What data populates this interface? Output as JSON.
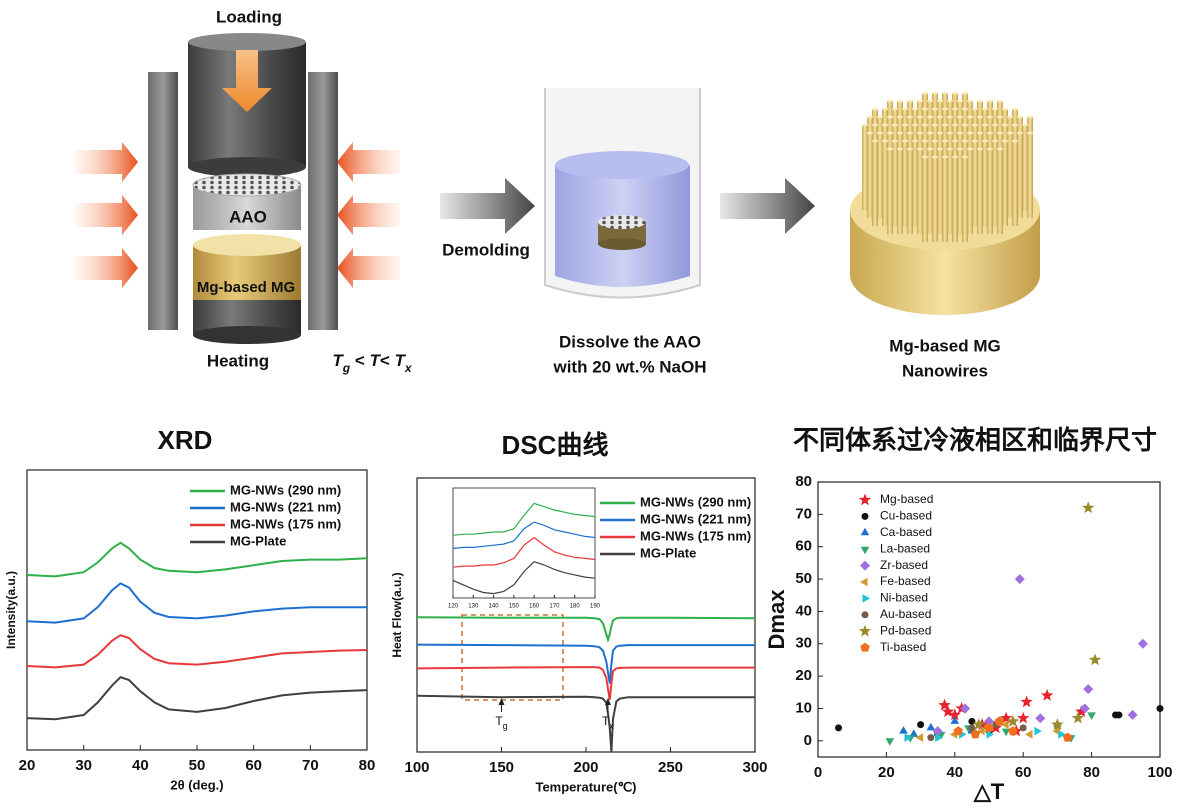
{
  "schematic": {
    "loading": "Loading",
    "aao": "AAO",
    "mg_based_mg": "Mg-based MG",
    "heating": "Heating",
    "condition": [
      "T",
      "g",
      " < ",
      "T",
      "< ",
      "T",
      "x"
    ],
    "demolding": "Demolding",
    "dissolve": [
      "Dissolve the AAO",
      "with 20 wt.% NaOH"
    ],
    "product": [
      "Mg-based MG",
      "Nanowires"
    ]
  },
  "chart_data": [
    {
      "type": "line",
      "title": "XRD",
      "xlabel": "2θ (deg.)",
      "ylabel": "Intensity(a.u.)",
      "x": [
        20,
        25,
        30,
        32.5,
        35,
        36.5,
        38,
        40,
        42.5,
        45,
        50,
        55,
        60,
        65,
        70,
        75,
        80
      ],
      "xlim": [
        20,
        80
      ],
      "xticks": [
        20,
        30,
        40,
        50,
        60,
        70,
        80
      ],
      "ylim": [
        0,
        10
      ],
      "legend": "upper right",
      "series": [
        {
          "name": "MG-NWs (290 nm)",
          "color": "#2eb04b",
          "values": [
            6.25,
            6.2,
            6.35,
            6.7,
            7.2,
            7.4,
            7.2,
            6.8,
            6.5,
            6.4,
            6.35,
            6.45,
            6.6,
            6.75,
            6.8,
            6.8,
            6.85
          ]
        },
        {
          "name": "MG-NWs (221 nm)",
          "color": "#1f6fd1",
          "values": [
            4.6,
            4.55,
            4.7,
            5.1,
            5.7,
            5.95,
            5.8,
            5.3,
            4.9,
            4.75,
            4.7,
            4.8,
            4.95,
            5.05,
            5.1,
            5.1,
            5.1
          ]
        },
        {
          "name": "MG-NWs (175 nm)",
          "color": "#e8383b",
          "values": [
            3.0,
            2.95,
            3.05,
            3.4,
            3.9,
            4.1,
            4.0,
            3.6,
            3.25,
            3.1,
            3.05,
            3.15,
            3.3,
            3.45,
            3.5,
            3.55,
            3.57
          ]
        },
        {
          "name": "MG-Plate",
          "color": "#404040",
          "values": [
            1.14,
            1.1,
            1.25,
            1.7,
            2.3,
            2.6,
            2.5,
            2.1,
            1.7,
            1.45,
            1.36,
            1.5,
            1.75,
            1.95,
            2.05,
            2.1,
            2.14
          ]
        }
      ]
    },
    {
      "type": "line",
      "title": "DSC曲线",
      "xlabel": "Temperature(℃)",
      "ylabel": "Heat Flow(a.u.)",
      "x": [
        100,
        150,
        200,
        205,
        208,
        210,
        212,
        213,
        214,
        215,
        216,
        218,
        220,
        225,
        250,
        300
      ],
      "xlim": [
        100,
        300
      ],
      "xticks": [
        100,
        150,
        200,
        250,
        300
      ],
      "ylim": [
        0,
        10
      ],
      "legend": "upper right",
      "annotations": [
        {
          "text": "T",
          "sub": "g",
          "x": 150
        },
        {
          "text": "T",
          "sub": "x",
          "x": 213
        }
      ],
      "series": [
        {
          "name": "MG-NWs (290 nm)",
          "color": "#2eb04b",
          "values": [
            4.92,
            4.9,
            4.9,
            4.88,
            4.85,
            4.7,
            4.3,
            4.1,
            4.3,
            4.6,
            4.8,
            4.88,
            4.9,
            4.9,
            4.9,
            4.88
          ]
        },
        {
          "name": "MG-NWs (221 nm)",
          "color": "#1f6fd1",
          "values": [
            3.92,
            3.9,
            3.88,
            3.86,
            3.82,
            3.7,
            3.3,
            2.9,
            2.5,
            3.2,
            3.7,
            3.85,
            3.88,
            3.9,
            3.9,
            3.9
          ]
        },
        {
          "name": "MG-NWs (175 nm)",
          "color": "#e8383b",
          "values": [
            3.05,
            3.08,
            3.1,
            3.1,
            3.08,
            3.0,
            2.7,
            2.3,
            1.9,
            2.5,
            2.95,
            3.05,
            3.07,
            3.08,
            3.08,
            3.08
          ]
        },
        {
          "name": "MG-Plate",
          "color": "#404040",
          "values": [
            2.05,
            2.0,
            2.02,
            2.0,
            1.98,
            1.95,
            1.8,
            1.4,
            0.9,
            0.0,
            1.2,
            1.85,
            1.95,
            2.0,
            2.0,
            2.0
          ]
        }
      ]
    },
    {
      "type": "line",
      "x": [
        120,
        125,
        130,
        135,
        140,
        145,
        150,
        155,
        160,
        165,
        170,
        175,
        180,
        185,
        190
      ],
      "xlim": [
        120,
        190
      ],
      "xticks": [
        120,
        130,
        140,
        150,
        160,
        170,
        180,
        190
      ],
      "ylim": [
        0,
        10
      ],
      "series": [
        {
          "color": "#2eb04b",
          "values": [
            5.7,
            5.8,
            5.8,
            5.9,
            6.0,
            6.0,
            6.3,
            7.5,
            8.6,
            8.3,
            8.0,
            7.8,
            7.6,
            7.5,
            7.4
          ]
        },
        {
          "color": "#1f6fd1",
          "values": [
            4.5,
            4.6,
            4.6,
            4.7,
            4.8,
            4.9,
            5.2,
            6.3,
            6.9,
            6.6,
            6.2,
            6.0,
            5.8,
            5.6,
            5.5
          ]
        },
        {
          "color": "#e8383b",
          "values": [
            2.8,
            2.9,
            2.9,
            3.0,
            3.0,
            3.2,
            3.6,
            4.8,
            5.5,
            4.8,
            4.2,
            3.9,
            3.7,
            3.6,
            3.5
          ]
        },
        {
          "color": "#404040",
          "values": [
            1.6,
            1.2,
            0.8,
            0.5,
            0.4,
            0.6,
            1.2,
            2.4,
            3.3,
            3.0,
            2.6,
            2.3,
            2.1,
            1.9,
            1.8
          ]
        }
      ]
    },
    {
      "type": "scatter",
      "title": "不同体系过冷液相区和临界尺寸",
      "xlabel": "△T",
      "ylabel": "Dmax",
      "xlim": [
        0,
        100
      ],
      "xticks": [
        0,
        20,
        40,
        60,
        80,
        100
      ],
      "ylim": [
        -5,
        80
      ],
      "yticks": [
        0,
        10,
        20,
        30,
        40,
        50,
        60,
        70,
        80
      ],
      "legend": "upper left",
      "series": [
        {
          "name": "Mg-based",
          "color": "#e8222a",
          "marker": "star",
          "x": [
            37,
            38,
            40,
            42,
            55,
            58,
            60,
            61,
            67,
            77,
            48,
            52
          ],
          "values": [
            11,
            9,
            8,
            10,
            7,
            3,
            7,
            12,
            14,
            9,
            5,
            4
          ]
        },
        {
          "name": "Cu-based",
          "color": "#111111",
          "marker": "circle",
          "x": [
            6,
            30,
            35,
            45,
            87,
            88,
            100,
            50
          ],
          "values": [
            4,
            5,
            2,
            6,
            8,
            8,
            10,
            3
          ]
        },
        {
          "name": "Ca-based",
          "color": "#1f6fd1",
          "marker": "triangle-up",
          "x": [
            25,
            28,
            33,
            40,
            45,
            50
          ],
          "values": [
            3,
            2,
            4,
            6,
            3,
            5
          ]
        },
        {
          "name": "La-based",
          "color": "#2ea86b",
          "marker": "triangle-down",
          "x": [
            21,
            27,
            36,
            44,
            55,
            70,
            80,
            74
          ],
          "values": [
            0,
            1,
            2,
            4,
            3,
            4,
            8,
            1
          ]
        },
        {
          "name": "Zr-based",
          "color": "#a070e0",
          "marker": "diamond",
          "x": [
            59,
            95,
            79,
            78,
            92,
            43,
            65,
            35,
            50
          ],
          "values": [
            50,
            30,
            16,
            10,
            8,
            10,
            7,
            3,
            6
          ]
        },
        {
          "name": "Fe-based",
          "color": "#d49a2a",
          "marker": "triangle-left",
          "x": [
            30,
            40,
            48,
            55,
            62,
            70
          ],
          "values": [
            1,
            2,
            3,
            5,
            2,
            3
          ]
        },
        {
          "name": "Ni-based",
          "color": "#22c4d8",
          "marker": "triangle-right",
          "x": [
            26,
            35,
            42,
            50,
            64,
            71
          ],
          "values": [
            1,
            1,
            2,
            2,
            3,
            2
          ]
        },
        {
          "name": "Au-based",
          "color": "#7a5c4a",
          "marker": "circle",
          "x": [
            33,
            45,
            52,
            60
          ],
          "values": [
            1,
            4,
            5,
            4
          ]
        },
        {
          "name": "Pd-based",
          "color": "#9a8a2a",
          "marker": "star",
          "x": [
            79,
            81,
            70,
            76,
            57,
            47
          ],
          "values": [
            72,
            25,
            5,
            7,
            6,
            5
          ]
        },
        {
          "name": "Ti-based",
          "color": "#f07020",
          "marker": "pentagon",
          "x": [
            41,
            46,
            50,
            53,
            57,
            73
          ],
          "values": [
            3,
            2,
            4,
            6,
            3,
            1
          ]
        }
      ]
    }
  ]
}
